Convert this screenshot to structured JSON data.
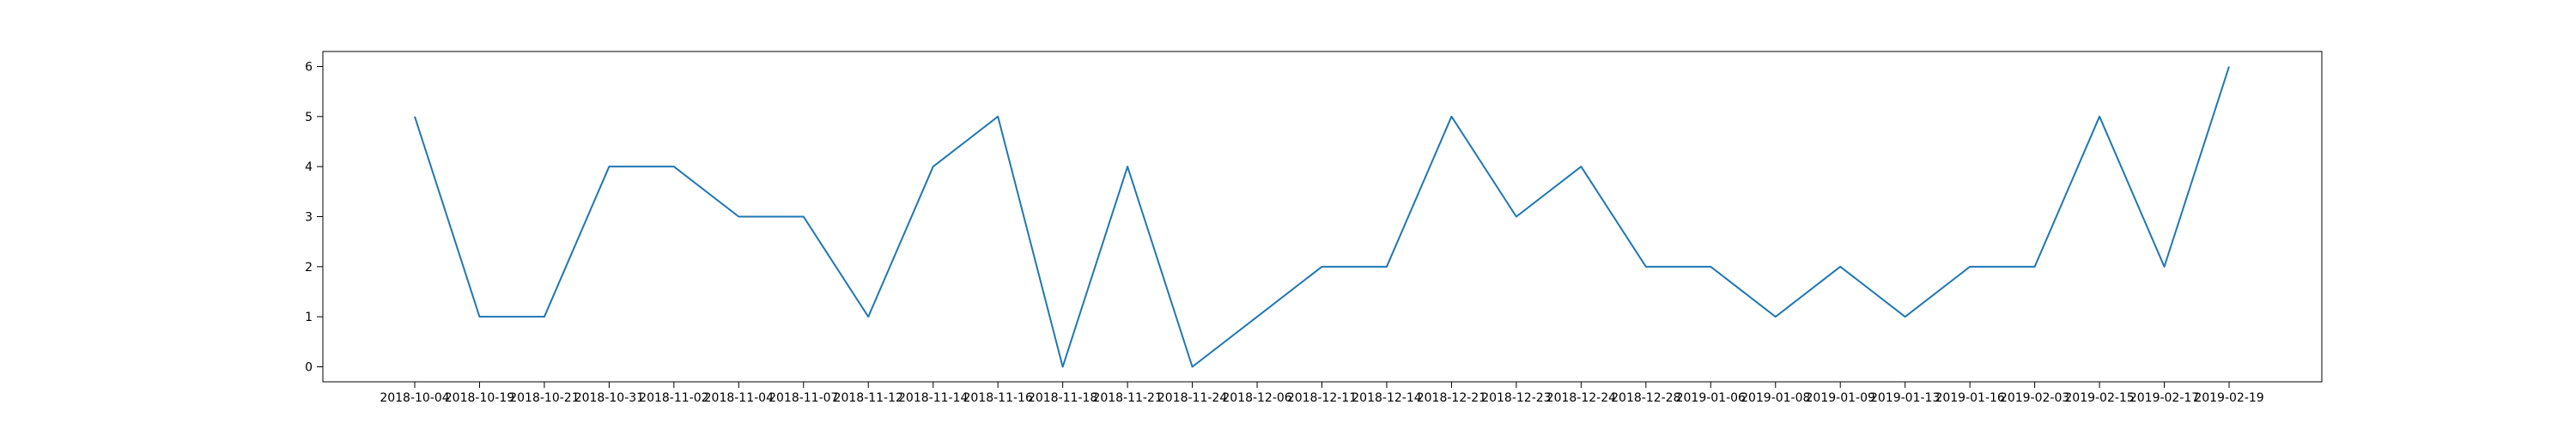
{
  "chart_data": {
    "type": "line",
    "title": "",
    "xlabel": "",
    "ylabel": "",
    "x": [
      "2018-10-04",
      "2018-10-19",
      "2018-10-21",
      "2018-10-31",
      "2018-11-02",
      "2018-11-04",
      "2018-11-07",
      "2018-11-12",
      "2018-11-14",
      "2018-11-16",
      "2018-11-18",
      "2018-11-21",
      "2018-11-24",
      "2018-12-06",
      "2018-12-11",
      "2018-12-14",
      "2018-12-21",
      "2018-12-23",
      "2018-12-24",
      "2018-12-28",
      "2019-01-06",
      "2019-01-08",
      "2019-01-09",
      "2019-01-13",
      "2019-01-16",
      "2019-02-03",
      "2019-02-15",
      "2019-02-17",
      "2019-02-19"
    ],
    "series": [
      {
        "values": [
          5,
          1,
          1,
          4,
          4,
          3,
          3,
          1,
          4,
          5,
          0,
          4,
          0,
          1,
          2,
          2,
          5,
          3,
          4,
          2,
          2,
          1,
          2,
          1,
          2,
          2,
          5,
          2,
          6
        ]
      }
    ],
    "ylim": [
      -0.3,
      6.3
    ],
    "yticks": [
      0,
      1,
      2,
      3,
      4,
      5,
      6
    ],
    "grid": false,
    "colors": {
      "line": "#1f77b4",
      "axes": "#000000",
      "background": "#ffffff"
    }
  }
}
